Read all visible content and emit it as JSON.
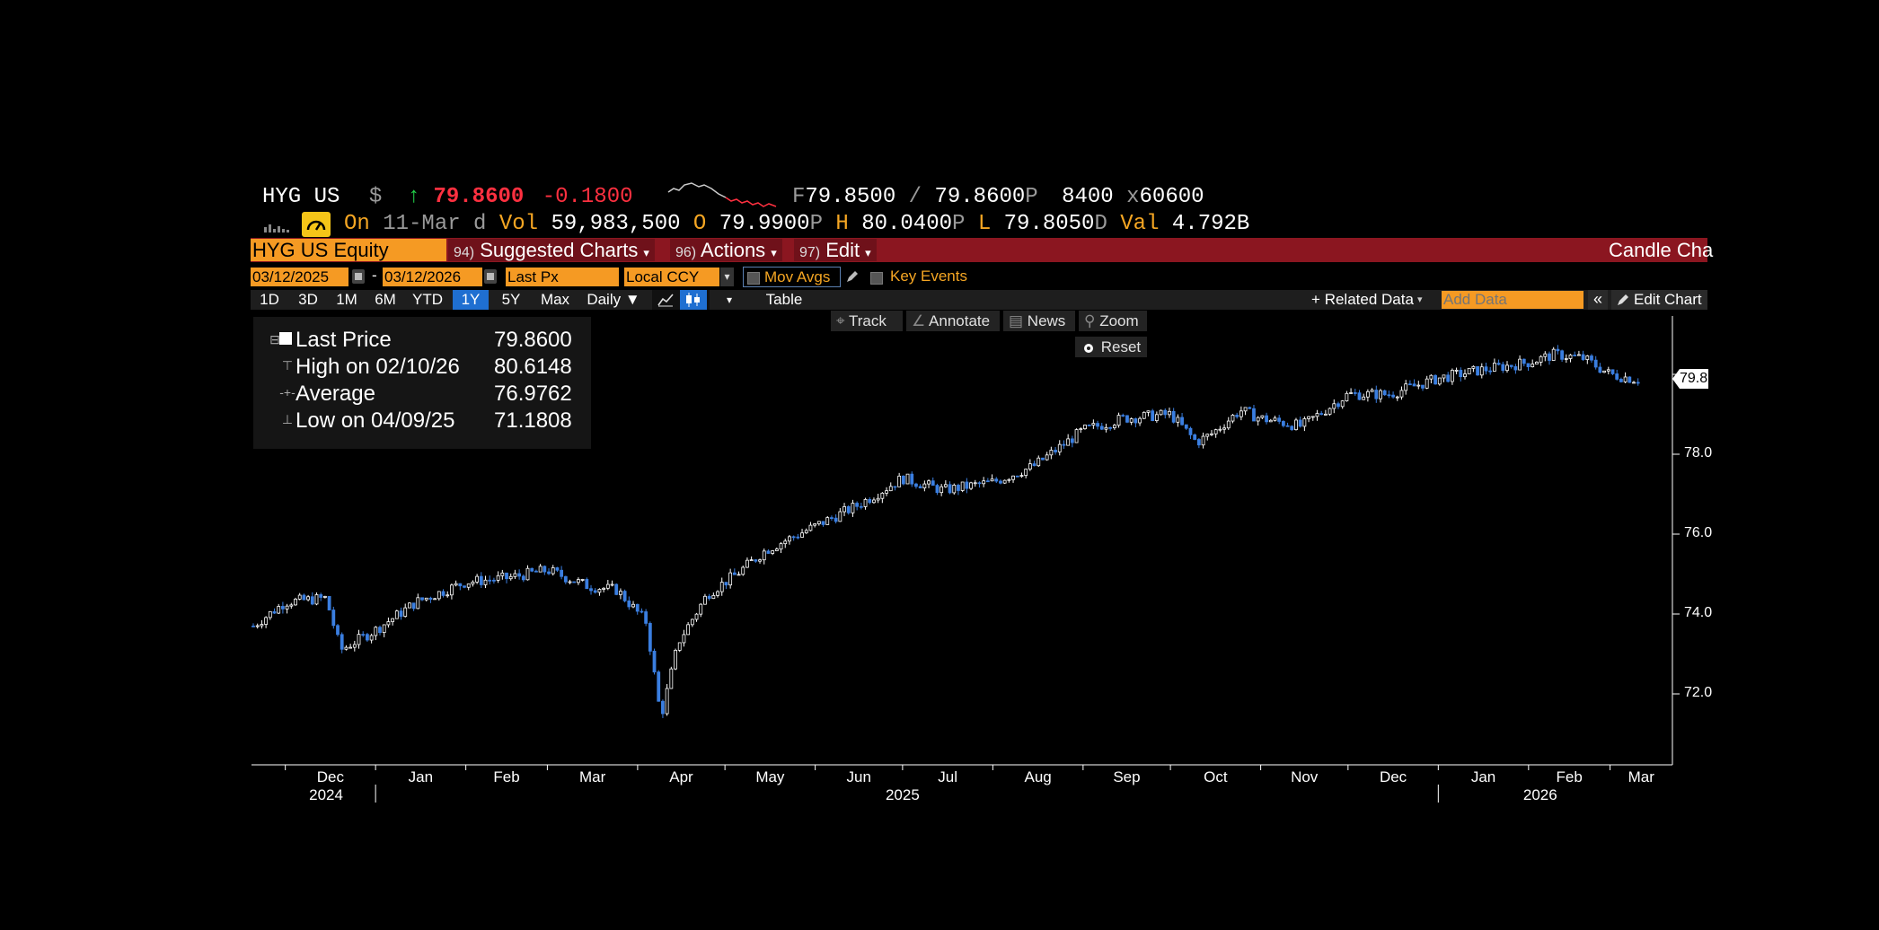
{
  "quote": {
    "ticker": "HYG US",
    "currency": "$",
    "arrow": "↑",
    "last": "79.8600",
    "change": "-0.1800",
    "bid_prefix": "F",
    "bid": "79.8500",
    "slash": "/",
    "ask": "79.8600",
    "ask_suffix": "P",
    "size": "8400",
    "x": "x",
    "size2": "60600",
    "on_label": "On",
    "date": "11-Mar",
    "d": "d",
    "vol_label": "Vol",
    "vol": "59,983,500",
    "open_label": "O",
    "open": "79.9900",
    "open_suffix": "P",
    "high_label": "H",
    "high": "80.0400",
    "high_suffix": "P",
    "low_label": "L",
    "low": "79.8050",
    "low_suffix": "D",
    "val_label": "Val",
    "val": "4.792B"
  },
  "command_bar": {
    "security": "HYG US Equity",
    "suggested_num": "94)",
    "suggested": "Suggested Charts",
    "actions_num": "96)",
    "actions": "Actions",
    "edit_num": "97)",
    "edit": "Edit",
    "title": "Candle Cha"
  },
  "inputs": {
    "start_date": "03/12/2025",
    "dash": "-",
    "end_date": "03/12/2026",
    "field": "Last Px",
    "currency": "Local CCY",
    "mov_avgs": "Mov Avgs",
    "key_events": "Key Events"
  },
  "periods": [
    "1D",
    "3D",
    "1M",
    "6M",
    "YTD",
    "1Y",
    "5Y",
    "Max"
  ],
  "active_period": "1Y",
  "frequency": "Daily ▼",
  "table_label": "Table",
  "related_data": "+ Related Data",
  "add_data_placeholder": "Add Data",
  "edit_chart": "Edit Chart",
  "tools": {
    "track": "Track",
    "annotate": "Annotate",
    "news": "News",
    "zoom": "Zoom",
    "reset": "Reset"
  },
  "legend": {
    "last_label": "Last Price",
    "last_value": "79.8600",
    "high_label": "High on 02/10/26",
    "high_value": "80.6148",
    "avg_label": "Average",
    "avg_value": "76.9762",
    "low_label": "Low on 04/09/25",
    "low_value": "71.1808"
  },
  "colors": {
    "up_candle": "#ffffff",
    "down_candle": "#3a7ee0",
    "command_bar": "#8b1620",
    "field_bg": "#f59a23",
    "last_price": "#ff3040",
    "active_period": "#1f6fd1"
  },
  "chart_data": {
    "type": "candlestick",
    "y_ticks": [
      "78.0",
      "76.0",
      "74.0",
      "72.0"
    ],
    "y_range": [
      70.2,
      81.0
    ],
    "last_price_tag": "79.8",
    "month_labels": [
      "Dec",
      "Jan",
      "Feb",
      "Mar",
      "Apr",
      "May",
      "Jun",
      "Jul",
      "Aug",
      "Sep",
      "Oct",
      "Nov",
      "Dec",
      "Jan",
      "Feb",
      "Mar"
    ],
    "year_labels": [
      "2024",
      "2025",
      "2026"
    ],
    "x": [
      "2024-11-20",
      "2024-12-01",
      "2024-12-15",
      "2024-12-20",
      "2025-01-01",
      "2025-01-15",
      "2025-02-01",
      "2025-02-15",
      "2025-03-01",
      "2025-03-15",
      "2025-03-25",
      "2025-04-04",
      "2025-04-09",
      "2025-04-15",
      "2025-04-25",
      "2025-05-05",
      "2025-05-15",
      "2025-06-01",
      "2025-06-15",
      "2025-07-01",
      "2025-07-15",
      "2025-08-01",
      "2025-08-15",
      "2025-09-01",
      "2025-09-15",
      "2025-10-01",
      "2025-10-10",
      "2025-10-15",
      "2025-10-25",
      "2025-11-01",
      "2025-11-15",
      "2025-11-25",
      "2025-12-01",
      "2025-12-15",
      "2026-01-01",
      "2026-01-15",
      "2026-02-01",
      "2026-02-10",
      "2026-02-20",
      "2026-03-01",
      "2026-03-11"
    ],
    "y": [
      73.7,
      74.3,
      74.4,
      73.1,
      73.6,
      74.3,
      74.8,
      74.9,
      75.1,
      74.7,
      74.6,
      73.8,
      71.4,
      73.3,
      74.5,
      75.0,
      75.6,
      76.2,
      76.7,
      77.4,
      77.1,
      77.3,
      77.7,
      78.6,
      78.9,
      79.0,
      78.3,
      78.5,
      79.1,
      78.9,
      78.7,
      79.2,
      79.5,
      79.5,
      79.9,
      80.1,
      80.3,
      80.5,
      80.4,
      80.0,
      79.86
    ]
  }
}
